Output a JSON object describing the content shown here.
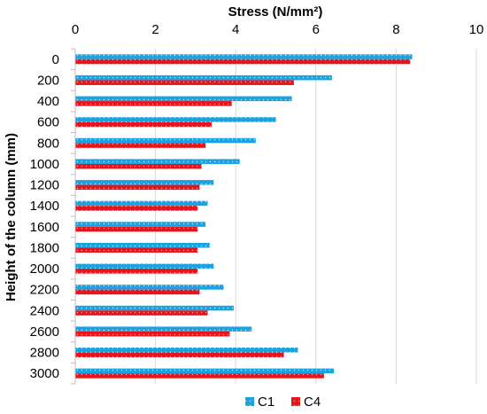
{
  "chart_data": {
    "type": "bar",
    "orientation": "horizontal",
    "xlabel": "Stress (N/mm²)",
    "ylabel": "Height of the column (mm)",
    "xlim": [
      0,
      10
    ],
    "x_ticks": [
      "0",
      "2",
      "4",
      "6",
      "8",
      "10"
    ],
    "x_axis_position": "top",
    "grid": "vertical",
    "legend_position": "bottom-center",
    "categories": [
      "0",
      "200",
      "400",
      "600",
      "800",
      "1000",
      "1200",
      "1400",
      "1600",
      "1800",
      "2000",
      "2200",
      "2400",
      "2600",
      "2800",
      "3000"
    ],
    "series": [
      {
        "name": "C1",
        "color": "#1aa3e0",
        "values": [
          8.4,
          6.4,
          5.4,
          5.0,
          4.5,
          4.1,
          3.45,
          3.3,
          3.25,
          3.35,
          3.45,
          3.7,
          3.95,
          4.4,
          5.55,
          6.45
        ]
      },
      {
        "name": "C4",
        "color": "#e8141c",
        "values": [
          8.35,
          5.45,
          3.9,
          3.4,
          3.25,
          3.15,
          3.1,
          3.05,
          3.05,
          3.05,
          3.05,
          3.1,
          3.3,
          3.85,
          5.2,
          6.2
        ]
      }
    ]
  }
}
